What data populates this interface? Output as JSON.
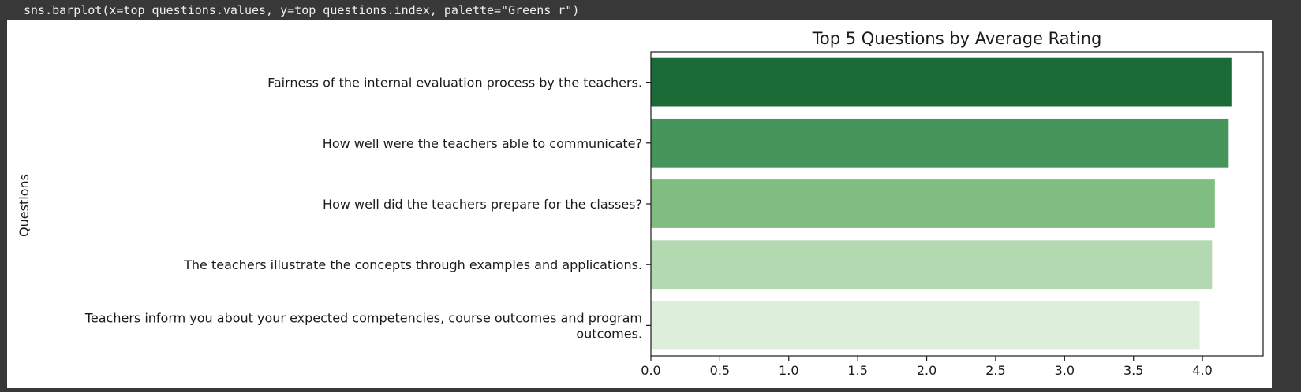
{
  "code": {
    "line": "sns.barplot(x=top_questions.values, y=top_questions.index, palette=\"Greens_r\")"
  },
  "chart_data": {
    "type": "bar",
    "orientation": "horizontal",
    "title": "Top 5 Questions by Average Rating",
    "xlabel": "",
    "ylabel": "Questions",
    "categories": [
      [
        "Fairness of the internal evaluation process by the teachers."
      ],
      [
        "How well were the teachers able to communicate?"
      ],
      [
        "How well did the teachers prepare for the classes?"
      ],
      [
        "The teachers illustrate the concepts through examples and applications."
      ],
      [
        "Teachers inform you about your expected competencies, course outcomes and program",
        "outcomes."
      ]
    ],
    "values": [
      4.21,
      4.19,
      4.09,
      4.07,
      3.98
    ],
    "colors": [
      "#1a6b37",
      "#46955a",
      "#80bd80",
      "#b2d9b0",
      "#ddefda"
    ],
    "xlim": [
      0,
      4.44
    ],
    "xticks": [
      "0.0",
      "0.5",
      "1.0",
      "1.5",
      "2.0",
      "2.5",
      "3.0",
      "3.5",
      "4.0"
    ],
    "grid": false
  }
}
